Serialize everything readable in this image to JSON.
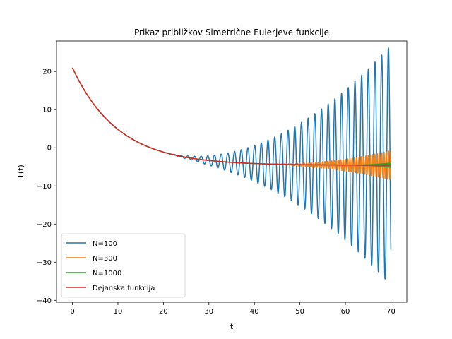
{
  "chart_data": {
    "type": "line",
    "title": "Prikaz približkov Simetrične Eulerjeve funkcije",
    "xlabel": "t",
    "ylabel": "T(t)",
    "xlim": [
      -3.5,
      73.5
    ],
    "ylim": [
      -40.5,
      28.0
    ],
    "xticks": [
      0,
      10,
      20,
      30,
      40,
      50,
      60,
      70
    ],
    "yticks": [
      -40,
      -30,
      -20,
      -10,
      0,
      10,
      20
    ],
    "legend_position": "lower left",
    "series": [
      {
        "name": "N=100",
        "color": "#1f77b4",
        "width": 1.5
      },
      {
        "name": "N=300",
        "color": "#ff7f0e",
        "width": 1.5
      },
      {
        "name": "N=1000",
        "color": "#2ca02c",
        "width": 1.5
      },
      {
        "name": "Dejanska funkcija",
        "color": "#d62728",
        "width": 1.5
      }
    ],
    "function": {
      "start_value": 21,
      "asymptote": -4.6,
      "decay_rate": 0.1
    },
    "oscillation": {
      "N=100": {
        "period": 1.47,
        "onset": 18,
        "end_amplitude": 31.5
      },
      "N=300": {
        "period": 0.5,
        "onset": 40,
        "end_amplitude": 3.8
      },
      "N=1000": {
        "period": 0.25,
        "onset": 60,
        "end_amplitude": 0.6
      }
    }
  }
}
